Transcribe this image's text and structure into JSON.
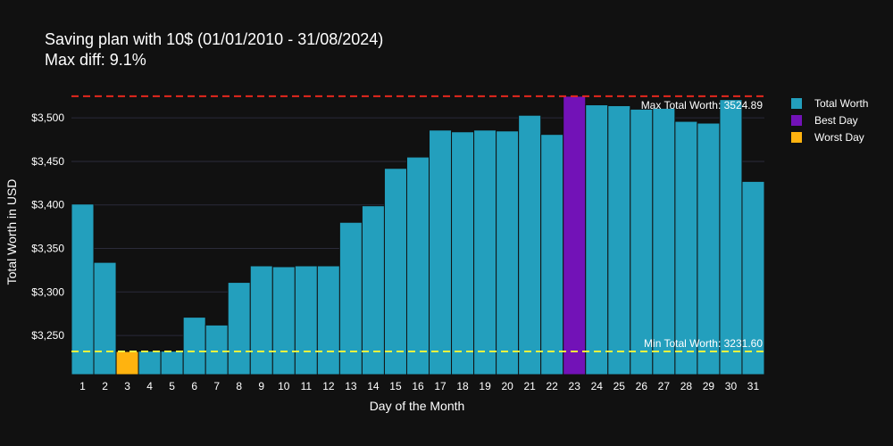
{
  "chart_data": {
    "type": "bar",
    "title": "Saving plan with 10$ (01/01/2010 - 31/08/2024)",
    "subtitle": "Max diff: 9.1%",
    "xlabel": "Day of the Month",
    "ylabel": "Total Worth in USD",
    "categories": [
      "1",
      "2",
      "3",
      "4",
      "5",
      "6",
      "7",
      "8",
      "9",
      "10",
      "11",
      "12",
      "13",
      "14",
      "15",
      "16",
      "17",
      "18",
      "19",
      "20",
      "21",
      "22",
      "23",
      "24",
      "25",
      "26",
      "27",
      "28",
      "29",
      "30",
      "31"
    ],
    "values": [
      3401,
      3334,
      3231.6,
      3232,
      3232,
      3271,
      3262,
      3311,
      3330,
      3329,
      3330,
      3330,
      3380,
      3399,
      3442,
      3455,
      3486,
      3484,
      3486,
      3485,
      3503,
      3481,
      3524.89,
      3515,
      3514,
      3510,
      3511,
      3496,
      3494,
      3521,
      3427
    ],
    "ylim": [
      3205,
      3535
    ],
    "yticks": [
      3250,
      3300,
      3350,
      3400,
      3450,
      3500
    ],
    "ytick_labels": [
      "$3,250",
      "$3,300",
      "$3,350",
      "$3,400",
      "$3,450",
      "$3,500"
    ],
    "grid": true,
    "legend_position": "right",
    "series": [
      {
        "name": "Total Worth",
        "color": "#239fbd"
      },
      {
        "name": "Best Day",
        "color": "#7212b7"
      },
      {
        "name": "Worst Day",
        "color": "#ffb30f"
      }
    ],
    "best_day": "23",
    "worst_day": "3",
    "reference_lines": [
      {
        "value": 3524.89,
        "color": "#e3271d",
        "label": "Max Total Worth: 3524.89"
      },
      {
        "value": 3231.6,
        "color": "#f2f23f",
        "label": "Min Total Worth: 3231.60"
      }
    ]
  },
  "colors": {
    "background": "#111111",
    "grid": "#2b2b3a",
    "bar_outline": "#111111"
  }
}
